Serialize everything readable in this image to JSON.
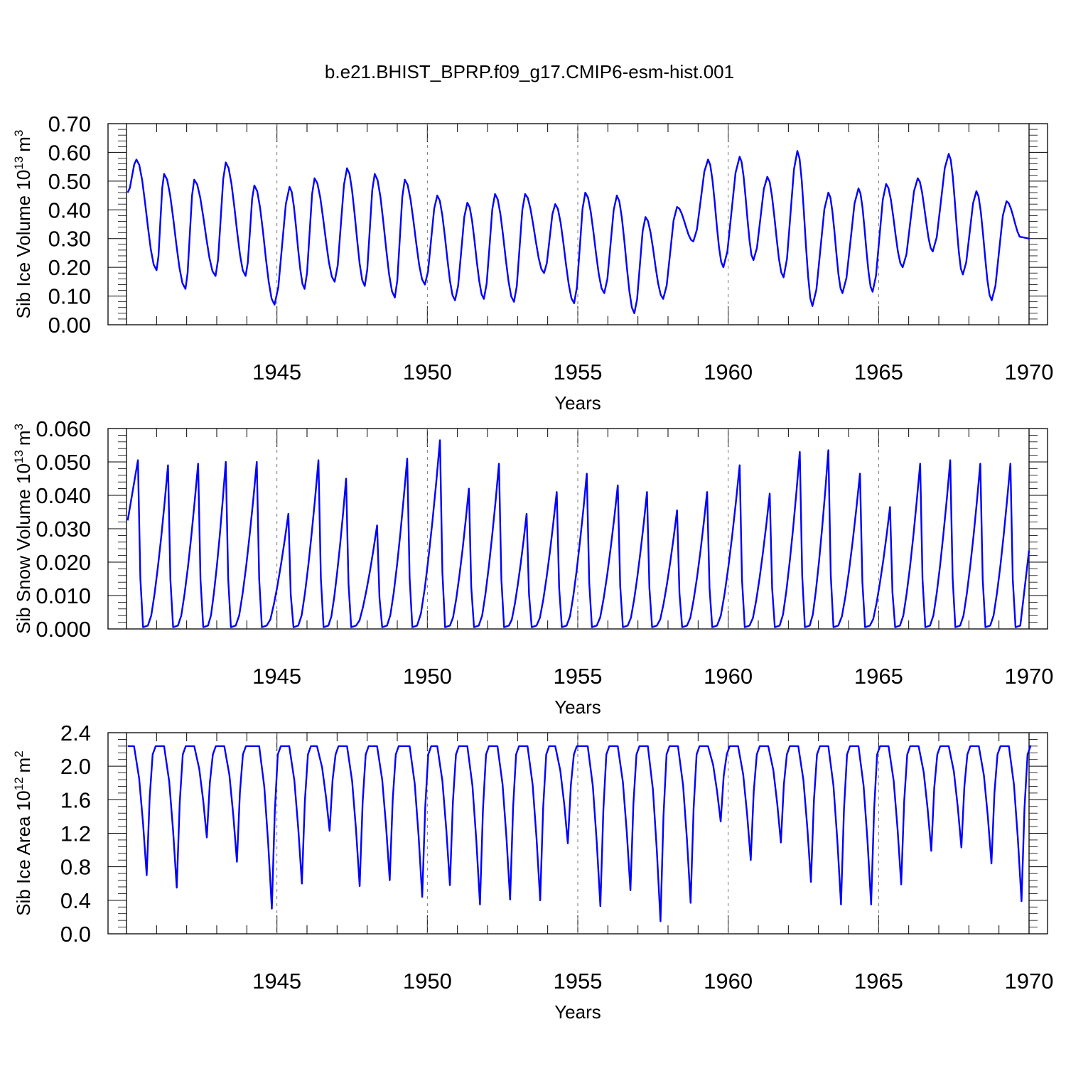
{
  "title": "b.e21.BHIST_BPRP.f09_g17.CMIP6-esm-hist.001",
  "line_color": "#0000ff",
  "chart_data": [
    {
      "type": "line",
      "ylabel_main": "Sib Ice Volume 10",
      "ylabel_exp": "13",
      "ylabel_unit": "m",
      "ylabel_unit_exp": "3",
      "xlabel": "Years",
      "xlim": [
        1940.0,
        1970.0
      ],
      "ylim": [
        0.0,
        0.7
      ],
      "yticks": [
        "0.00",
        "0.10",
        "0.20",
        "0.30",
        "0.40",
        "0.50",
        "0.60",
        "0.70"
      ],
      "xticks": [
        "1945",
        "1950",
        "1955",
        "1960",
        "1965",
        "1970"
      ],
      "grid": "vertical dashed at labeled years",
      "series": [
        {
          "x": [
            1940.04,
            1941.0,
            1941.96,
            1942.96,
            1943.96,
            1944.92,
            1945.92,
            1946.92,
            1947.92,
            1948.92,
            1949.92,
            1950.92,
            1951.88,
            1952.88,
            1953.88,
            1954.88,
            1955.88,
            1956.88,
            1957.84,
            1958.84,
            1959.84,
            1960.84,
            1961.84,
            1962.8,
            1963.8,
            1964.8,
            1965.8,
            1966.8,
            1967.8,
            1968.76,
            1969.76,
            1970.0
          ],
          "peaks_x": [
            1940.33,
            1941.25,
            1942.25,
            1943.3,
            1944.25,
            1945.42,
            1946.25,
            1947.33,
            1948.25,
            1949.25,
            1950.33,
            1951.33,
            1952.25,
            1953.25,
            1954.25,
            1955.25,
            1956.3,
            1957.25,
            1958.3,
            1959.33,
            1960.38,
            1961.3,
            1962.3,
            1963.33,
            1964.33,
            1965.25,
            1966.3,
            1967.33,
            1968.25,
            1969.25
          ],
          "peaks_y": [
            0.575,
            0.525,
            0.505,
            0.565,
            0.485,
            0.48,
            0.51,
            0.545,
            0.525,
            0.505,
            0.45,
            0.425,
            0.455,
            0.455,
            0.42,
            0.46,
            0.45,
            0.375,
            0.41,
            0.575,
            0.585,
            0.515,
            0.605,
            0.46,
            0.475,
            0.49,
            0.51,
            0.595,
            0.465,
            0.43
          ],
          "troughs_y": [
            0.46,
            0.19,
            0.125,
            0.17,
            0.17,
            0.07,
            0.125,
            0.15,
            0.135,
            0.095,
            0.14,
            0.085,
            0.09,
            0.08,
            0.18,
            0.075,
            0.11,
            0.04,
            0.09,
            0.29,
            0.2,
            0.225,
            0.165,
            0.065,
            0.11,
            0.115,
            0.2,
            0.255,
            0.175,
            0.085
          ]
        }
      ]
    },
    {
      "type": "line",
      "ylabel_main": "Sib Snow Volume 10",
      "ylabel_exp": "13",
      "ylabel_unit": "m",
      "ylabel_unit_exp": "3",
      "xlabel": "Years",
      "xlim": [
        1940.0,
        1970.0
      ],
      "ylim": [
        0.0,
        0.06
      ],
      "yticks": [
        "0.000",
        "0.010",
        "0.020",
        "0.030",
        "0.040",
        "0.050",
        "0.060"
      ],
      "xticks": [
        "1945",
        "1950",
        "1955",
        "1960",
        "1965",
        "1970"
      ],
      "grid": "vertical dashed at labeled years",
      "series": [
        {
          "start_x": 1940.04,
          "start_y": 0.0325,
          "peaks_x": [
            1940.38,
            1941.38,
            1942.38,
            1943.3,
            1944.33,
            1945.38,
            1946.38,
            1947.3,
            1948.33,
            1949.33,
            1950.42,
            1951.38,
            1952.38,
            1953.3,
            1954.3,
            1955.3,
            1956.33,
            1957.3,
            1958.3,
            1959.3,
            1960.38,
            1961.38,
            1962.38,
            1963.33,
            1964.38,
            1965.38,
            1966.38,
            1967.38,
            1968.38,
            1969.38
          ],
          "peaks_y": [
            0.0505,
            0.049,
            0.0495,
            0.05,
            0.05,
            0.0345,
            0.0505,
            0.045,
            0.031,
            0.051,
            0.0565,
            0.042,
            0.0495,
            0.0345,
            0.041,
            0.0465,
            0.043,
            0.041,
            0.0355,
            0.041,
            0.049,
            0.0405,
            0.053,
            0.0535,
            0.0465,
            0.0365,
            0.0495,
            0.0505,
            0.0495,
            0.0495
          ],
          "end_x": 1970.0,
          "end_y": 0.0235
        }
      ]
    },
    {
      "type": "line",
      "ylabel_main": "Sib Ice Area 10",
      "ylabel_exp": "12",
      "ylabel_unit": "m",
      "ylabel_unit_exp": "2",
      "xlabel": "Years",
      "xlim": [
        1940.0,
        1970.0
      ],
      "ylim": [
        0.0,
        2.4
      ],
      "yticks": [
        "0.0",
        "0.4",
        "0.8",
        "1.2",
        "1.6",
        "2.0",
        "2.4"
      ],
      "xticks": [
        "1945",
        "1950",
        "1955",
        "1960",
        "1965",
        "1970"
      ],
      "grid": "vertical dashed at labeled years",
      "series": [
        {
          "max_y": 2.24,
          "min_x": [
            1940.67,
            1941.67,
            1942.67,
            1943.67,
            1944.83,
            1945.83,
            1946.75,
            1947.75,
            1948.75,
            1949.83,
            1950.75,
            1951.75,
            1952.75,
            1953.75,
            1954.67,
            1955.75,
            1956.75,
            1957.75,
            1958.75,
            1959.75,
            1960.75,
            1961.75,
            1962.75,
            1963.75,
            1964.75,
            1965.75,
            1966.75,
            1967.75,
            1968.75,
            1969.75
          ],
          "min_y": [
            0.7,
            0.55,
            1.15,
            0.86,
            0.3,
            0.6,
            1.23,
            0.57,
            0.64,
            0.44,
            0.58,
            0.35,
            0.41,
            0.4,
            1.08,
            0.33,
            0.52,
            0.15,
            0.37,
            1.34,
            0.88,
            1.09,
            0.62,
            0.35,
            0.35,
            0.59,
            0.99,
            1.03,
            0.84,
            0.39
          ],
          "end_x": 1970.0,
          "end_y": 2.24
        }
      ]
    }
  ]
}
